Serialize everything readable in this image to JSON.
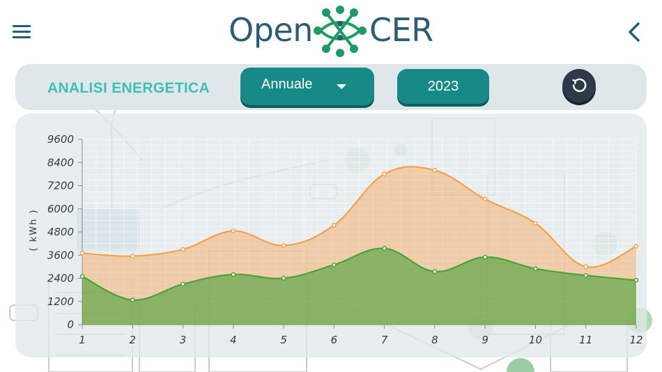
{
  "header": {
    "logo_left": "Open",
    "logo_right": "CER",
    "menu_icon": "hamburger-icon",
    "back_icon": "chevron-left-icon"
  },
  "controls": {
    "section_title": "ANALISI ENERGETICA",
    "period_selected": "Annuale",
    "year": "2023",
    "reset_icon": "reset-icon"
  },
  "colors": {
    "accent": "#178a87",
    "title": "#3fbfb6",
    "orange_series": "#f5a04a",
    "green_series": "#4aa23a",
    "logo": "#2e5d73"
  },
  "chart_data": {
    "type": "area",
    "x": [
      1,
      2,
      3,
      4,
      5,
      6,
      7,
      8,
      9,
      10,
      11,
      12
    ],
    "xtick_labels": [
      "1",
      "2",
      "3",
      "4",
      "5",
      "6",
      "7",
      "8",
      "9",
      "10",
      "11",
      "12"
    ],
    "ylabel": "( kWh )",
    "ylim": [
      0,
      9600
    ],
    "yticks": [
      "9600",
      "8400",
      "7200",
      "6000",
      "4800",
      "3600",
      "2400",
      "1200",
      "0"
    ],
    "ytick_values": [
      9600,
      8400,
      7200,
      6000,
      4800,
      3600,
      2400,
      1200,
      0
    ],
    "grid": true,
    "series": [
      {
        "values": [
          3700,
          3550,
          3900,
          4850,
          4100,
          5150,
          7800,
          8000,
          6500,
          5250,
          3000,
          4050
        ],
        "color": "#f5a04a"
      },
      {
        "values": [
          2500,
          1280,
          2100,
          2600,
          2400,
          3100,
          3950,
          2750,
          3500,
          2900,
          2550,
          2300
        ],
        "color": "#4aa23a"
      }
    ]
  }
}
